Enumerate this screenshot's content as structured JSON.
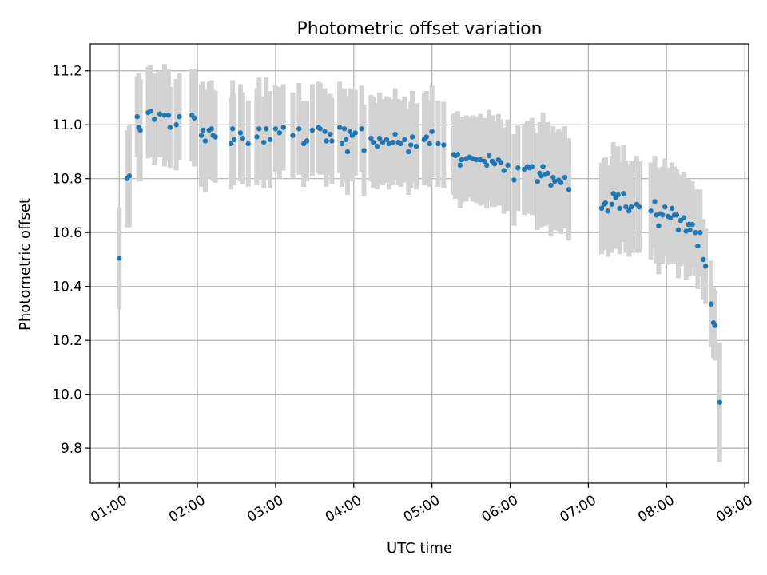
{
  "chart_data": {
    "type": "scatter",
    "title": "Photometric offset variation",
    "xlabel": "UTC time",
    "ylabel": "Photometric offset",
    "x_unit": "hours UTC",
    "xlim": [
      0.63,
      9.05
    ],
    "ylim": [
      9.67,
      11.3
    ],
    "x_ticks": [
      1,
      2,
      3,
      4,
      5,
      6,
      7,
      8,
      9
    ],
    "x_tick_labels": [
      "01:00",
      "02:00",
      "03:00",
      "04:00",
      "05:00",
      "06:00",
      "07:00",
      "08:00",
      "09:00"
    ],
    "y_ticks": [
      9.8,
      10.0,
      10.2,
      10.4,
      10.6,
      10.8,
      11.0,
      11.2
    ],
    "y_tick_labels": [
      "9.8",
      "10.0",
      "10.2",
      "10.4",
      "10.6",
      "10.8",
      "11.0",
      "11.2"
    ],
    "grid": true,
    "colors": {
      "points": "#1f77b4",
      "error_bars": "#d3d3d3",
      "grid": "#b0b0b0"
    },
    "series": [
      {
        "points": [
          [
            1.0,
            10.505,
            0.19
          ],
          [
            1.1,
            10.8,
            0.18
          ],
          [
            1.13,
            10.81,
            0.19
          ],
          [
            1.23,
            11.03,
            0.15
          ],
          [
            1.25,
            10.99,
            0.2
          ],
          [
            1.27,
            10.98,
            0.19
          ],
          [
            1.37,
            11.045,
            0.17
          ],
          [
            1.4,
            11.05,
            0.17
          ],
          [
            1.45,
            11.02,
            0.17
          ],
          [
            1.52,
            11.04,
            0.16
          ],
          [
            1.58,
            11.035,
            0.19
          ],
          [
            1.63,
            11.035,
            0.17
          ],
          [
            1.65,
            10.99,
            0.15
          ],
          [
            1.73,
            11.0,
            0.17
          ],
          [
            1.77,
            11.03,
            0.16
          ],
          [
            1.93,
            11.035,
            0.17
          ],
          [
            1.96,
            11.025,
            0.18
          ],
          [
            2.05,
            10.96,
            0.19
          ],
          [
            2.07,
            10.98,
            0.18
          ],
          [
            2.1,
            10.94,
            0.19
          ],
          [
            2.15,
            10.98,
            0.18
          ],
          [
            2.18,
            10.985,
            0.18
          ],
          [
            2.2,
            10.96,
            0.17
          ],
          [
            2.23,
            10.955,
            0.17
          ],
          [
            2.43,
            10.93,
            0.17
          ],
          [
            2.45,
            10.985,
            0.18
          ],
          [
            2.47,
            10.945,
            0.17
          ],
          [
            2.55,
            10.97,
            0.18
          ],
          [
            2.58,
            10.95,
            0.17
          ],
          [
            2.65,
            10.93,
            0.16
          ],
          [
            2.76,
            10.955,
            0.18
          ],
          [
            2.79,
            10.985,
            0.19
          ],
          [
            2.85,
            10.935,
            0.17
          ],
          [
            2.88,
            10.985,
            0.19
          ],
          [
            2.93,
            10.945,
            0.18
          ],
          [
            3.0,
            10.985,
            0.16
          ],
          [
            3.05,
            10.97,
            0.17
          ],
          [
            3.1,
            10.99,
            0.16
          ],
          [
            3.22,
            10.96,
            0.16
          ],
          [
            3.3,
            10.985,
            0.17
          ],
          [
            3.36,
            10.93,
            0.16
          ],
          [
            3.4,
            10.94,
            0.15
          ],
          [
            3.47,
            10.98,
            0.17
          ],
          [
            3.55,
            10.99,
            0.17
          ],
          [
            3.57,
            10.985,
            0.17
          ],
          [
            3.63,
            10.975,
            0.16
          ],
          [
            3.65,
            10.94,
            0.17
          ],
          [
            3.7,
            10.965,
            0.15
          ],
          [
            3.72,
            10.94,
            0.16
          ],
          [
            3.82,
            10.99,
            0.17
          ],
          [
            3.85,
            10.93,
            0.16
          ],
          [
            3.88,
            10.985,
            0.15
          ],
          [
            3.9,
            10.945,
            0.16
          ],
          [
            3.92,
            10.9,
            0.16
          ],
          [
            3.95,
            10.975,
            0.16
          ],
          [
            3.98,
            10.96,
            0.17
          ],
          [
            4.02,
            10.97,
            0.16
          ],
          [
            4.1,
            10.985,
            0.16
          ],
          [
            4.13,
            10.905,
            0.17
          ],
          [
            4.22,
            10.95,
            0.16
          ],
          [
            4.25,
            10.935,
            0.17
          ],
          [
            4.3,
            10.92,
            0.16
          ],
          [
            4.33,
            10.95,
            0.17
          ],
          [
            4.37,
            10.935,
            0.16
          ],
          [
            4.42,
            10.945,
            0.16
          ],
          [
            4.45,
            10.93,
            0.17
          ],
          [
            4.5,
            10.935,
            0.16
          ],
          [
            4.53,
            10.965,
            0.17
          ],
          [
            4.57,
            10.935,
            0.16
          ],
          [
            4.6,
            10.93,
            0.16
          ],
          [
            4.65,
            10.945,
            0.16
          ],
          [
            4.7,
            10.9,
            0.16
          ],
          [
            4.73,
            10.925,
            0.16
          ],
          [
            4.75,
            10.955,
            0.17
          ],
          [
            4.8,
            10.92,
            0.16
          ],
          [
            4.9,
            10.945,
            0.17
          ],
          [
            4.93,
            10.955,
            0.17
          ],
          [
            4.97,
            10.93,
            0.16
          ],
          [
            5.0,
            10.975,
            0.17
          ],
          [
            5.08,
            10.93,
            0.16
          ],
          [
            5.15,
            10.925,
            0.16
          ],
          [
            5.28,
            10.89,
            0.15
          ],
          [
            5.3,
            10.885,
            0.16
          ],
          [
            5.33,
            10.89,
            0.16
          ],
          [
            5.36,
            10.85,
            0.16
          ],
          [
            5.38,
            10.87,
            0.16
          ],
          [
            5.44,
            10.875,
            0.16
          ],
          [
            5.48,
            10.88,
            0.15
          ],
          [
            5.52,
            10.875,
            0.16
          ],
          [
            5.57,
            10.87,
            0.16
          ],
          [
            5.62,
            10.87,
            0.17
          ],
          [
            5.67,
            10.865,
            0.16
          ],
          [
            5.7,
            10.85,
            0.16
          ],
          [
            5.73,
            10.885,
            0.17
          ],
          [
            5.77,
            10.865,
            0.17
          ],
          [
            5.8,
            10.855,
            0.16
          ],
          [
            5.85,
            10.87,
            0.17
          ],
          [
            5.88,
            10.86,
            0.16
          ],
          [
            5.92,
            10.83,
            0.16
          ],
          [
            5.97,
            10.85,
            0.17
          ],
          [
            6.05,
            10.795,
            0.17
          ],
          [
            6.1,
            10.84,
            0.16
          ],
          [
            6.18,
            10.835,
            0.17
          ],
          [
            6.22,
            10.845,
            0.17
          ],
          [
            6.25,
            10.84,
            0.17
          ],
          [
            6.28,
            10.845,
            0.18
          ],
          [
            6.35,
            10.79,
            0.18
          ],
          [
            6.38,
            10.82,
            0.19
          ],
          [
            6.4,
            10.81,
            0.19
          ],
          [
            6.42,
            10.845,
            0.2
          ],
          [
            6.45,
            10.815,
            0.19
          ],
          [
            6.48,
            10.82,
            0.19
          ],
          [
            6.52,
            10.775,
            0.19
          ],
          [
            6.55,
            10.805,
            0.19
          ],
          [
            6.57,
            10.79,
            0.18
          ],
          [
            6.62,
            10.795,
            0.19
          ],
          [
            6.65,
            10.785,
            0.19
          ],
          [
            6.7,
            10.805,
            0.19
          ],
          [
            6.75,
            10.76,
            0.19
          ],
          [
            7.17,
            10.69,
            0.17
          ],
          [
            7.2,
            10.705,
            0.17
          ],
          [
            7.22,
            10.71,
            0.17
          ],
          [
            7.25,
            10.68,
            0.17
          ],
          [
            7.3,
            10.705,
            0.18
          ],
          [
            7.32,
            10.745,
            0.19
          ],
          [
            7.35,
            10.73,
            0.19
          ],
          [
            7.38,
            10.74,
            0.18
          ],
          [
            7.4,
            10.69,
            0.17
          ],
          [
            7.45,
            10.745,
            0.18
          ],
          [
            7.48,
            10.695,
            0.17
          ],
          [
            7.52,
            10.68,
            0.17
          ],
          [
            7.55,
            10.695,
            0.17
          ],
          [
            7.62,
            10.705,
            0.18
          ],
          [
            7.65,
            10.695,
            0.17
          ],
          [
            7.8,
            10.68,
            0.18
          ],
          [
            7.85,
            10.715,
            0.17
          ],
          [
            7.87,
            10.665,
            0.18
          ],
          [
            7.9,
            10.625,
            0.18
          ],
          [
            7.92,
            10.67,
            0.17
          ],
          [
            7.95,
            10.665,
            0.18
          ],
          [
            7.98,
            10.695,
            0.18
          ],
          [
            8.02,
            10.66,
            0.18
          ],
          [
            8.05,
            10.655,
            0.17
          ],
          [
            8.07,
            10.69,
            0.17
          ],
          [
            8.1,
            10.665,
            0.18
          ],
          [
            8.13,
            10.665,
            0.17
          ],
          [
            8.15,
            10.61,
            0.18
          ],
          [
            8.18,
            10.645,
            0.17
          ],
          [
            8.22,
            10.655,
            0.17
          ],
          [
            8.25,
            10.605,
            0.18
          ],
          [
            8.28,
            10.63,
            0.17
          ],
          [
            8.3,
            10.61,
            0.17
          ],
          [
            8.33,
            10.63,
            0.16
          ],
          [
            8.37,
            10.6,
            0.16
          ],
          [
            8.4,
            10.55,
            0.16
          ],
          [
            8.43,
            10.6,
            0.16
          ],
          [
            8.47,
            10.5,
            0.15
          ],
          [
            8.5,
            10.475,
            0.14
          ],
          [
            8.57,
            10.335,
            0.16
          ],
          [
            8.6,
            10.265,
            0.13
          ],
          [
            8.62,
            10.255,
            0.13
          ],
          [
            8.68,
            9.97,
            0.22
          ]
        ]
      }
    ]
  }
}
